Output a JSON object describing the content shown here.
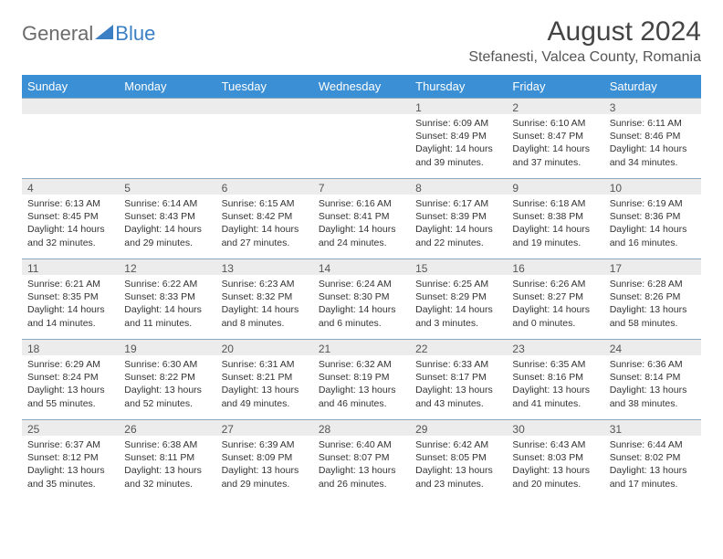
{
  "logo": {
    "part1": "General",
    "part2": "Blue"
  },
  "title": "August 2024",
  "location": "Stefanesti, Valcea County, Romania",
  "colors": {
    "header_bg": "#3b8fd4",
    "header_text": "#ffffff",
    "daynum_bg": "#ececec",
    "rule": "#8aa8c0",
    "logo_gray": "#6b6b6b",
    "logo_blue": "#3b7fc4",
    "body_text": "#333333"
  },
  "weekdays": [
    "Sunday",
    "Monday",
    "Tuesday",
    "Wednesday",
    "Thursday",
    "Friday",
    "Saturday"
  ],
  "layout": {
    "columns": 7,
    "rows": 5,
    "first_weekday_index": 4
  },
  "days": [
    {
      "n": "1",
      "sr": "Sunrise: 6:09 AM",
      "ss": "Sunset: 8:49 PM",
      "dl": "Daylight: 14 hours and 39 minutes."
    },
    {
      "n": "2",
      "sr": "Sunrise: 6:10 AM",
      "ss": "Sunset: 8:47 PM",
      "dl": "Daylight: 14 hours and 37 minutes."
    },
    {
      "n": "3",
      "sr": "Sunrise: 6:11 AM",
      "ss": "Sunset: 8:46 PM",
      "dl": "Daylight: 14 hours and 34 minutes."
    },
    {
      "n": "4",
      "sr": "Sunrise: 6:13 AM",
      "ss": "Sunset: 8:45 PM",
      "dl": "Daylight: 14 hours and 32 minutes."
    },
    {
      "n": "5",
      "sr": "Sunrise: 6:14 AM",
      "ss": "Sunset: 8:43 PM",
      "dl": "Daylight: 14 hours and 29 minutes."
    },
    {
      "n": "6",
      "sr": "Sunrise: 6:15 AM",
      "ss": "Sunset: 8:42 PM",
      "dl": "Daylight: 14 hours and 27 minutes."
    },
    {
      "n": "7",
      "sr": "Sunrise: 6:16 AM",
      "ss": "Sunset: 8:41 PM",
      "dl": "Daylight: 14 hours and 24 minutes."
    },
    {
      "n": "8",
      "sr": "Sunrise: 6:17 AM",
      "ss": "Sunset: 8:39 PM",
      "dl": "Daylight: 14 hours and 22 minutes."
    },
    {
      "n": "9",
      "sr": "Sunrise: 6:18 AM",
      "ss": "Sunset: 8:38 PM",
      "dl": "Daylight: 14 hours and 19 minutes."
    },
    {
      "n": "10",
      "sr": "Sunrise: 6:19 AM",
      "ss": "Sunset: 8:36 PM",
      "dl": "Daylight: 14 hours and 16 minutes."
    },
    {
      "n": "11",
      "sr": "Sunrise: 6:21 AM",
      "ss": "Sunset: 8:35 PM",
      "dl": "Daylight: 14 hours and 14 minutes."
    },
    {
      "n": "12",
      "sr": "Sunrise: 6:22 AM",
      "ss": "Sunset: 8:33 PM",
      "dl": "Daylight: 14 hours and 11 minutes."
    },
    {
      "n": "13",
      "sr": "Sunrise: 6:23 AM",
      "ss": "Sunset: 8:32 PM",
      "dl": "Daylight: 14 hours and 8 minutes."
    },
    {
      "n": "14",
      "sr": "Sunrise: 6:24 AM",
      "ss": "Sunset: 8:30 PM",
      "dl": "Daylight: 14 hours and 6 minutes."
    },
    {
      "n": "15",
      "sr": "Sunrise: 6:25 AM",
      "ss": "Sunset: 8:29 PM",
      "dl": "Daylight: 14 hours and 3 minutes."
    },
    {
      "n": "16",
      "sr": "Sunrise: 6:26 AM",
      "ss": "Sunset: 8:27 PM",
      "dl": "Daylight: 14 hours and 0 minutes."
    },
    {
      "n": "17",
      "sr": "Sunrise: 6:28 AM",
      "ss": "Sunset: 8:26 PM",
      "dl": "Daylight: 13 hours and 58 minutes."
    },
    {
      "n": "18",
      "sr": "Sunrise: 6:29 AM",
      "ss": "Sunset: 8:24 PM",
      "dl": "Daylight: 13 hours and 55 minutes."
    },
    {
      "n": "19",
      "sr": "Sunrise: 6:30 AM",
      "ss": "Sunset: 8:22 PM",
      "dl": "Daylight: 13 hours and 52 minutes."
    },
    {
      "n": "20",
      "sr": "Sunrise: 6:31 AM",
      "ss": "Sunset: 8:21 PM",
      "dl": "Daylight: 13 hours and 49 minutes."
    },
    {
      "n": "21",
      "sr": "Sunrise: 6:32 AM",
      "ss": "Sunset: 8:19 PM",
      "dl": "Daylight: 13 hours and 46 minutes."
    },
    {
      "n": "22",
      "sr": "Sunrise: 6:33 AM",
      "ss": "Sunset: 8:17 PM",
      "dl": "Daylight: 13 hours and 43 minutes."
    },
    {
      "n": "23",
      "sr": "Sunrise: 6:35 AM",
      "ss": "Sunset: 8:16 PM",
      "dl": "Daylight: 13 hours and 41 minutes."
    },
    {
      "n": "24",
      "sr": "Sunrise: 6:36 AM",
      "ss": "Sunset: 8:14 PM",
      "dl": "Daylight: 13 hours and 38 minutes."
    },
    {
      "n": "25",
      "sr": "Sunrise: 6:37 AM",
      "ss": "Sunset: 8:12 PM",
      "dl": "Daylight: 13 hours and 35 minutes."
    },
    {
      "n": "26",
      "sr": "Sunrise: 6:38 AM",
      "ss": "Sunset: 8:11 PM",
      "dl": "Daylight: 13 hours and 32 minutes."
    },
    {
      "n": "27",
      "sr": "Sunrise: 6:39 AM",
      "ss": "Sunset: 8:09 PM",
      "dl": "Daylight: 13 hours and 29 minutes."
    },
    {
      "n": "28",
      "sr": "Sunrise: 6:40 AM",
      "ss": "Sunset: 8:07 PM",
      "dl": "Daylight: 13 hours and 26 minutes."
    },
    {
      "n": "29",
      "sr": "Sunrise: 6:42 AM",
      "ss": "Sunset: 8:05 PM",
      "dl": "Daylight: 13 hours and 23 minutes."
    },
    {
      "n": "30",
      "sr": "Sunrise: 6:43 AM",
      "ss": "Sunset: 8:03 PM",
      "dl": "Daylight: 13 hours and 20 minutes."
    },
    {
      "n": "31",
      "sr": "Sunrise: 6:44 AM",
      "ss": "Sunset: 8:02 PM",
      "dl": "Daylight: 13 hours and 17 minutes."
    }
  ]
}
